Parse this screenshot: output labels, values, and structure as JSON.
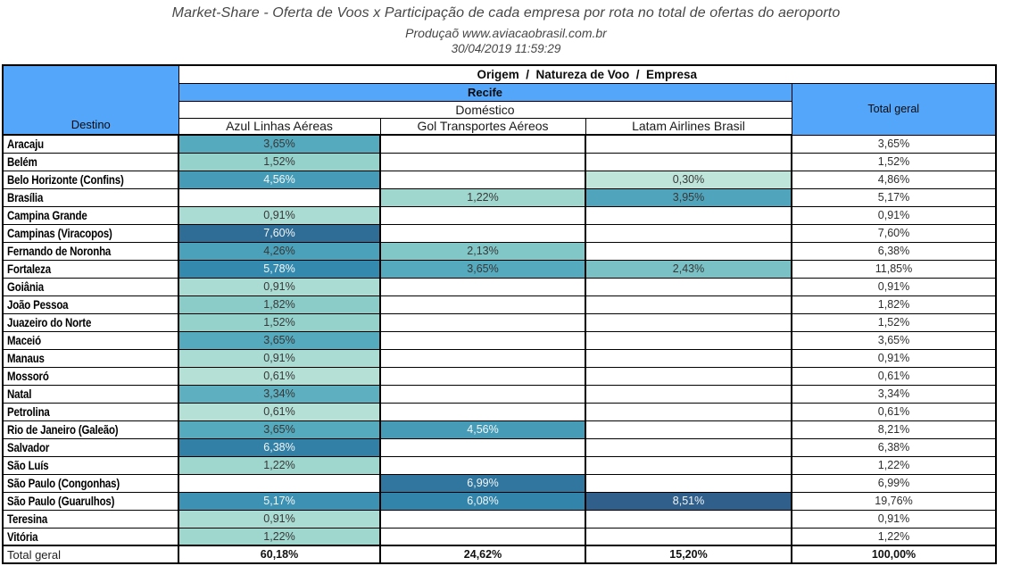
{
  "header": {
    "title": "Market-Share - Oferta de Voos x Participação de cada empresa por rota no total de ofertas do aeroporto",
    "subtitle": "Produçaõ www.aviacaobrasil.com.br",
    "timestamp": "30/04/2019 11:59:29"
  },
  "chart_data": {
    "type": "heatmap",
    "row_header": "Destino",
    "col_group_header": "Origem  /  Natureza de Voo  /  Empresa",
    "origin": "Recife",
    "flight_nature": "Doméstico",
    "columns": [
      "Azul Linhas Aéreas",
      "Gol Transportes Aéreos",
      "Latam Airlines Brasil"
    ],
    "total_label": "Total geral",
    "value_unit": "percent",
    "rows": [
      {
        "destino": "Aracaju",
        "values": [
          3.65,
          null,
          null
        ],
        "total": 3.65
      },
      {
        "destino": "Belém",
        "values": [
          1.52,
          null,
          null
        ],
        "total": 1.52
      },
      {
        "destino": "Belo Horizonte (Confins)",
        "values": [
          4.56,
          null,
          0.3
        ],
        "total": 4.86
      },
      {
        "destino": "Brasília",
        "values": [
          null,
          1.22,
          3.95
        ],
        "total": 5.17
      },
      {
        "destino": "Campina Grande",
        "values": [
          0.91,
          null,
          null
        ],
        "total": 0.91
      },
      {
        "destino": "Campinas (Viracopos)",
        "values": [
          7.6,
          null,
          null
        ],
        "total": 7.6
      },
      {
        "destino": "Fernando de Noronha",
        "values": [
          4.26,
          2.13,
          null
        ],
        "total": 6.38
      },
      {
        "destino": "Fortaleza",
        "values": [
          5.78,
          3.65,
          2.43
        ],
        "total": 11.85
      },
      {
        "destino": "Goiânia",
        "values": [
          0.91,
          null,
          null
        ],
        "total": 0.91
      },
      {
        "destino": "João Pessoa",
        "values": [
          1.82,
          null,
          null
        ],
        "total": 1.82
      },
      {
        "destino": "Juazeiro do Norte",
        "values": [
          1.52,
          null,
          null
        ],
        "total": 1.52
      },
      {
        "destino": "Maceió",
        "values": [
          3.65,
          null,
          null
        ],
        "total": 3.65
      },
      {
        "destino": "Manaus",
        "values": [
          0.91,
          null,
          null
        ],
        "total": 0.91
      },
      {
        "destino": "Mossoró",
        "values": [
          0.61,
          null,
          null
        ],
        "total": 0.61
      },
      {
        "destino": "Natal",
        "values": [
          3.34,
          null,
          null
        ],
        "total": 3.34
      },
      {
        "destino": "Petrolina",
        "values": [
          0.61,
          null,
          null
        ],
        "total": 0.61
      },
      {
        "destino": "Rio de Janeiro (Galeão)",
        "values": [
          3.65,
          4.56,
          null
        ],
        "total": 8.21
      },
      {
        "destino": "Salvador",
        "values": [
          6.38,
          null,
          null
        ],
        "total": 6.38
      },
      {
        "destino": "São Luís",
        "values": [
          1.22,
          null,
          null
        ],
        "total": 1.22
      },
      {
        "destino": "São Paulo (Congonhas)",
        "values": [
          null,
          6.99,
          null
        ],
        "total": 6.99
      },
      {
        "destino": "São Paulo (Guarulhos)",
        "values": [
          5.17,
          6.08,
          8.51
        ],
        "total": 19.76
      },
      {
        "destino": "Teresina",
        "values": [
          0.91,
          null,
          null
        ],
        "total": 0.91
      },
      {
        "destino": "Vitória",
        "values": [
          1.22,
          null,
          null
        ],
        "total": 1.22
      }
    ],
    "grand_total": {
      "label": "Total geral",
      "values": [
        60.18,
        24.62,
        15.2
      ],
      "total": 100.0
    },
    "colormap": {
      "anchors": [
        [
          0.3,
          "#BFE5DA"
        ],
        [
          1.52,
          "#94D2CB"
        ],
        [
          3.65,
          "#55AABE"
        ],
        [
          5.78,
          "#3389AE"
        ],
        [
          7.6,
          "#2F6D96"
        ],
        [
          8.51,
          "#305F8C"
        ]
      ],
      "white_text_threshold": 4.4,
      "dark_text_color": "#383838",
      "light_text_color": "#f2f6f7"
    },
    "header_blue": "#54A6FA"
  }
}
